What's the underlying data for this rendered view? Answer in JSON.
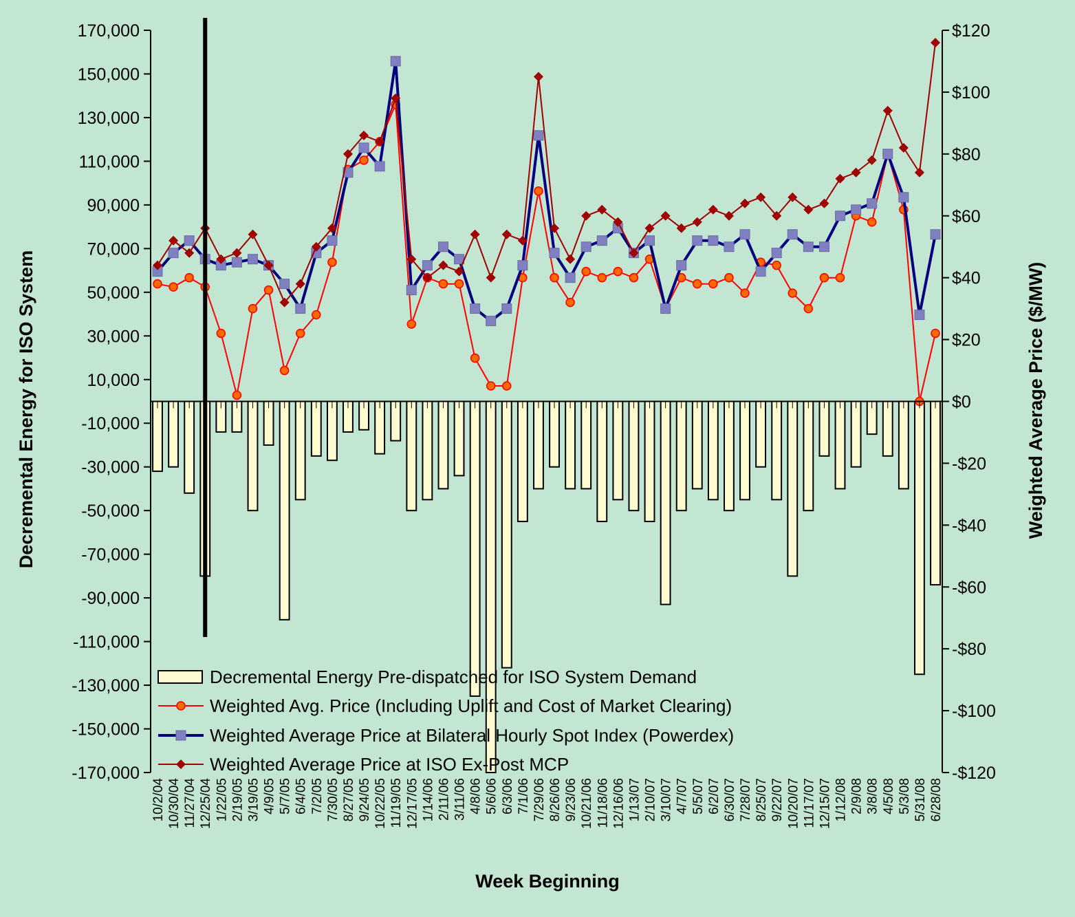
{
  "chart_data": {
    "type": "bar+line",
    "xlabel": "Week Beginning",
    "ylabel_left": "Decremental Energy for ISO System",
    "ylabel_right": "Weighted Average Price ($/MW)",
    "ylim_left": [
      -170000,
      170000
    ],
    "ylim_right": [
      -120,
      120
    ],
    "yticks_left": [
      "170,000",
      "150,000",
      "130,000",
      "110,000",
      "90,000",
      "70,000",
      "50,000",
      "30,000",
      "10,000",
      "-10,000",
      "-30,000",
      "-50,000",
      "-70,000",
      "-90,000",
      "-110,000",
      "-130,000",
      "-150,000",
      "-170,000"
    ],
    "yticks_right": [
      "$120",
      "$100",
      "$80",
      "$60",
      "$40",
      "$20",
      "$0",
      "-$20",
      "-$40",
      "-$60",
      "-$80",
      "-$100",
      "-$120"
    ],
    "x_tick_labels": [
      "10/2/04",
      "10/30/04",
      "11/27/04",
      "12/25/04",
      "1/22/05",
      "2/19/05",
      "3/19/05",
      "4/9/05",
      "5/7/05",
      "6/4/05",
      "7/2/05",
      "7/30/05",
      "8/27/05",
      "9/24/05",
      "10/22/05",
      "11/19/05",
      "12/17/05",
      "1/14/06",
      "2/11/06",
      "3/11/06",
      "4/8/06",
      "5/6/06",
      "6/3/06",
      "7/1/06",
      "7/29/06",
      "8/26/06",
      "9/23/06",
      "10/21/06",
      "11/18/06",
      "12/16/06",
      "1/13/07",
      "2/10/07",
      "3/10/07",
      "4/7/07",
      "5/5/07",
      "6/2/07",
      "6/30/07",
      "7/28/07",
      "8/25/07",
      "9/22/07",
      "10/20/07",
      "11/17/07",
      "12/15/07",
      "1/12/08",
      "2/9/08",
      "3/8/08",
      "4/5/08",
      "5/3/08",
      "5/31/08",
      "6/28/08"
    ],
    "vertical_marker_week": 3,
    "series": [
      {
        "name": "Decremental Energy Pre-dispatched for ISO System Demand",
        "kind": "bar",
        "axis": "left",
        "x_ticks": [
          0,
          1,
          2,
          3,
          4,
          5,
          6,
          7,
          8,
          9,
          10,
          11,
          12,
          13,
          14,
          15,
          16,
          17,
          18,
          19,
          20,
          21,
          22,
          23,
          24,
          25,
          26,
          27,
          28,
          29,
          30,
          31,
          32,
          33,
          34,
          35,
          36,
          37,
          38,
          39,
          40,
          41,
          42,
          43,
          44,
          45,
          46,
          47,
          48,
          49
        ],
        "values": [
          -32000,
          -30000,
          -42000,
          -80000,
          -14000,
          -14000,
          -50000,
          -20000,
          -100000,
          -45000,
          -25000,
          -27000,
          -14000,
          -13000,
          -24000,
          -18000,
          -50000,
          -45000,
          -40000,
          -34000,
          -135000,
          -170000,
          -122000,
          -55000,
          -40000,
          -30000,
          -40000,
          -40000,
          -55000,
          -45000,
          -50000,
          -55000,
          -93000,
          -50000,
          -40000,
          -45000,
          -50000,
          -45000,
          -30000,
          -45000,
          -80000,
          -50000,
          -25000,
          -40000,
          -30000,
          -15000,
          -25000,
          -40000,
          -125000,
          -84000
        ]
      },
      {
        "name": "Weighted Avg. Price (Including Uplift and Cost of Market Clearing)",
        "kind": "line",
        "axis": "right",
        "x_ticks": [
          0,
          1,
          2,
          3,
          4,
          5,
          6,
          7,
          8,
          9,
          10,
          11,
          12,
          13,
          14,
          15,
          16,
          17,
          18,
          19,
          20,
          21,
          22,
          23,
          24,
          25,
          26,
          27,
          28,
          29,
          30,
          31,
          32,
          33,
          34,
          35,
          36,
          37,
          38,
          39,
          40,
          41,
          42,
          43,
          44,
          45,
          46,
          47,
          48,
          49
        ],
        "values": [
          38,
          37,
          40,
          37,
          22,
          2,
          30,
          36,
          10,
          22,
          28,
          45,
          75,
          78,
          84,
          96,
          25,
          40,
          38,
          38,
          14,
          5,
          5,
          40,
          68,
          40,
          32,
          42,
          40,
          42,
          40,
          46,
          30,
          40,
          38,
          38,
          40,
          35,
          45,
          44,
          35,
          30,
          40,
          40,
          60,
          58,
          80,
          62,
          0,
          22
        ]
      },
      {
        "name": "Weighted Average Price at Bilateral Hourly Spot Index (Powerdex)",
        "kind": "line",
        "axis": "right",
        "x_ticks": [
          0,
          1,
          2,
          3,
          4,
          5,
          6,
          7,
          8,
          9,
          10,
          11,
          12,
          13,
          14,
          15,
          16,
          17,
          18,
          19,
          20,
          21,
          22,
          23,
          24,
          25,
          26,
          27,
          28,
          29,
          30,
          31,
          32,
          33,
          34,
          35,
          36,
          37,
          38,
          39,
          40,
          41,
          42,
          43,
          44,
          45,
          46,
          47,
          48,
          49
        ],
        "values": [
          42,
          48,
          52,
          46,
          44,
          45,
          46,
          44,
          38,
          30,
          48,
          52,
          74,
          82,
          76,
          110,
          36,
          44,
          50,
          46,
          30,
          26,
          30,
          44,
          86,
          48,
          40,
          50,
          52,
          56,
          48,
          52,
          30,
          44,
          52,
          52,
          50,
          54,
          42,
          48,
          54,
          50,
          50,
          60,
          62,
          64,
          80,
          66,
          28,
          54
        ]
      },
      {
        "name": "Weighted Average Price at ISO Ex-Post MCP",
        "kind": "line",
        "axis": "right",
        "x_ticks": [
          0,
          1,
          2,
          3,
          4,
          5,
          6,
          7,
          8,
          9,
          10,
          11,
          12,
          13,
          14,
          15,
          16,
          17,
          18,
          19,
          20,
          21,
          22,
          23,
          24,
          25,
          26,
          27,
          28,
          29,
          30,
          31,
          32,
          33,
          34,
          35,
          36,
          37,
          38,
          39,
          40,
          41,
          42,
          43,
          44,
          45,
          46,
          47,
          48,
          49
        ],
        "values": [
          44,
          52,
          48,
          56,
          46,
          48,
          54,
          44,
          32,
          38,
          50,
          56,
          80,
          86,
          84,
          98,
          46,
          40,
          44,
          42,
          54,
          40,
          54,
          52,
          105,
          56,
          46,
          60,
          62,
          58,
          48,
          56,
          60,
          56,
          58,
          62,
          60,
          64,
          66,
          60,
          66,
          62,
          64,
          72,
          74,
          78,
          94,
          82,
          74,
          116
        ]
      }
    ],
    "legend_position": "bottom-left",
    "colors": {
      "background": "#c2e6d2",
      "bar_fill": "#fffbd0",
      "bar_edge": "#000000",
      "uplift_line": "#ff0000",
      "uplift_marker": "#ff6a00",
      "powerdex_line": "#00007f",
      "powerdex_marker": "#8080c0",
      "mcp_line": "#a00000",
      "mcp_marker": "#a00000",
      "marker_line": "#000000"
    }
  }
}
